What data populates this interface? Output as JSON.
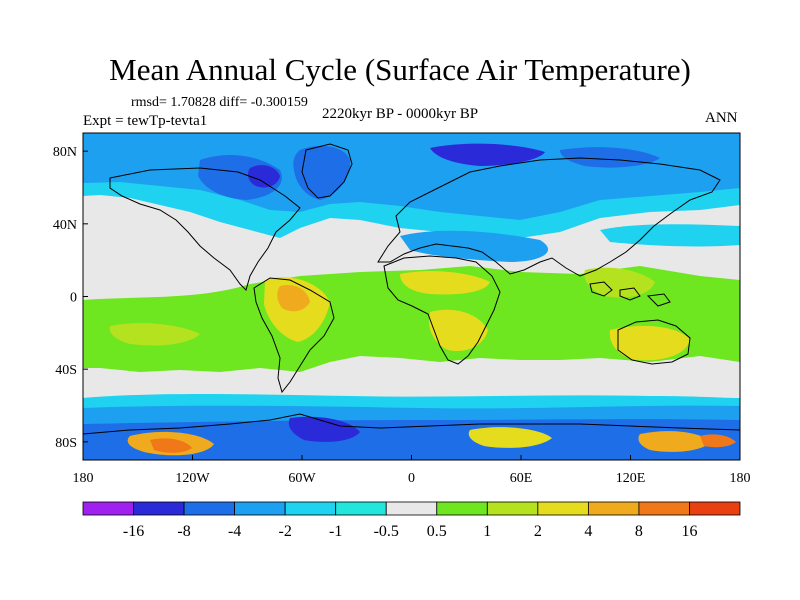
{
  "title": "Mean Annual Cycle (Surface Air Temperature)",
  "stats": "rmsd= 1.70828 diff= -0.300159",
  "experiment": "Expt = tewTp-tevta1",
  "period": "2220kyr BP - 0000kyr BP",
  "season": "ANN",
  "lat_labels": [
    "80N",
    "40N",
    "0",
    "40S",
    "80S"
  ],
  "lon_labels": [
    "180",
    "120W",
    "60W",
    "0",
    "60E",
    "120E",
    "180"
  ],
  "colorbar": {
    "labels": [
      "-16",
      "-8",
      "-4",
      "-2",
      "-1",
      "-0.5",
      "0.5",
      "1",
      "2",
      "4",
      "8",
      "16"
    ],
    "colors": [
      "#a020f0",
      "#2a2ad8",
      "#1e6ee8",
      "#1ea0f0",
      "#1ed2f0",
      "#22e6dc",
      "#e8e8e8",
      "#6ee620",
      "#b4e21e",
      "#e6dc1e",
      "#f0aa1e",
      "#f07818",
      "#e84010"
    ]
  },
  "palette": {
    "vneg": "#2a2ad8",
    "neg": "#1e6ee8",
    "sky": "#1ea0f0",
    "cyan": "#1ed2f0",
    "aqua": "#22e6dc",
    "grey": "#e8e8e8",
    "green": "#6ee620",
    "yg": "#b4e21e",
    "yel": "#e6dc1e",
    "orange": "#f0aa1e",
    "red": "#f07818",
    "coast": "#000000"
  }
}
